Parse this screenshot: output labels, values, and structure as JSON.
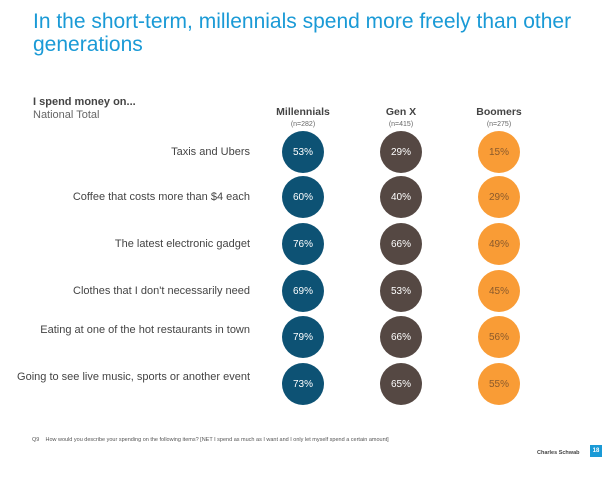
{
  "title": "In the short-term, millennials spend more freely than other generations",
  "question_label": "I spend money on...",
  "subtitle": "National Total",
  "colors": {
    "title": "#1a9ad6",
    "millennials": "#0d5274",
    "gen_x": "#554843",
    "boomers": "#f99c36",
    "boomers_text": "#8a5a2c"
  },
  "chart_data": {
    "type": "table",
    "columns": [
      {
        "name": "Millennials",
        "n": "(n=282)"
      },
      {
        "name": "Gen X",
        "n": "(n=415)"
      },
      {
        "name": "Boomers",
        "n": "(n=275)"
      }
    ],
    "rows": [
      {
        "label": "Taxis and Ubers",
        "values": [
          "53%",
          "29%",
          "15%"
        ]
      },
      {
        "label": "Coffee that costs more than $4 each",
        "values": [
          "60%",
          "40%",
          "29%"
        ]
      },
      {
        "label": "The latest electronic gadget",
        "values": [
          "76%",
          "66%",
          "49%"
        ]
      },
      {
        "label": "Clothes that I don't necessarily need",
        "values": [
          "69%",
          "53%",
          "45%"
        ]
      },
      {
        "label": "Eating at one of the hot restaurants in town",
        "values": [
          "79%",
          "66%",
          "56%"
        ]
      },
      {
        "label": "Going to see live music, sports or another event",
        "values": [
          "73%",
          "65%",
          "55%"
        ]
      }
    ]
  },
  "footnote": {
    "code": "Q9",
    "text": "How would you describe your spending on the following items? [NET I spend as much as I want and I only let myself spend a certain amount]"
  },
  "brand": "Charles Schwab",
  "page_number": "18"
}
